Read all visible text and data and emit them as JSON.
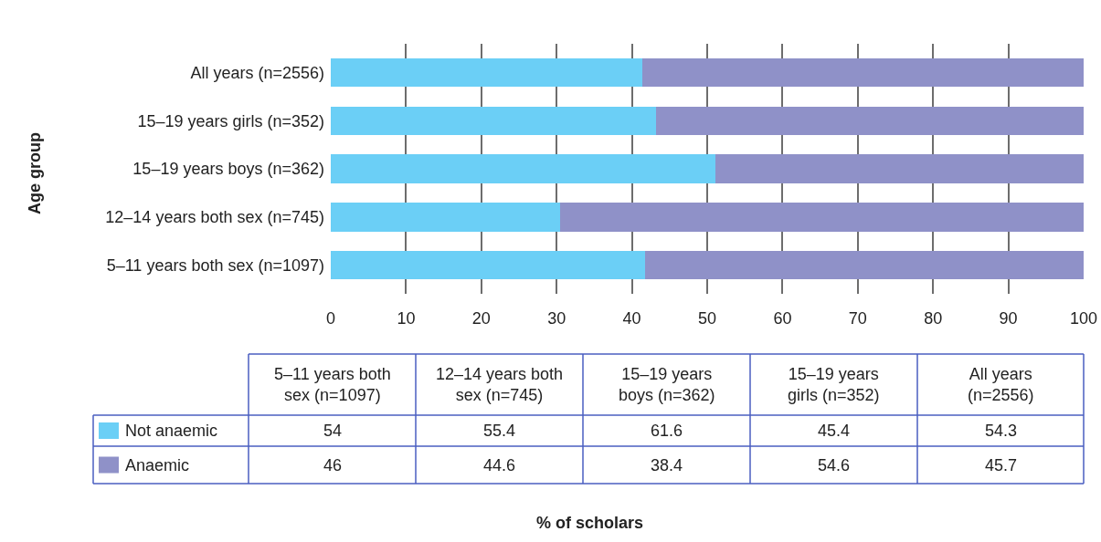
{
  "chart_data": {
    "type": "bar",
    "orientation": "horizontal",
    "stacked": true,
    "ylabel": "Age group",
    "legend": "bottom left",
    "categories": [
      "All years (n=2556)",
      "15–19 years girls (n=352)",
      "15–19 years boys (n=362)",
      "12–14 years both sex (n=745)",
      "5–11 years both sex (n=1097)"
    ],
    "series": [
      {
        "name": "Not anaemic",
        "color": "#6bcff6",
        "values": [
          41.4,
          43.2,
          51.1,
          30.5,
          41.7
        ]
      },
      {
        "name": "Anaemic",
        "color": "#8f91c8",
        "values": [
          58.6,
          56.8,
          48.9,
          69.5,
          58.3
        ]
      }
    ],
    "annotations": [
      "54",
      "55.4",
      "61.6",
      "45.4",
      "54.3",
      "46",
      "44.6",
      "38.4",
      "54.6",
      "45.7",
      "% of scholars"
    ],
    "xlim": [
      0,
      100
    ],
    "xticks": [
      0,
      10,
      20,
      30,
      40,
      50,
      60,
      70,
      80,
      90,
      100
    ],
    "grid": "x"
  }
}
